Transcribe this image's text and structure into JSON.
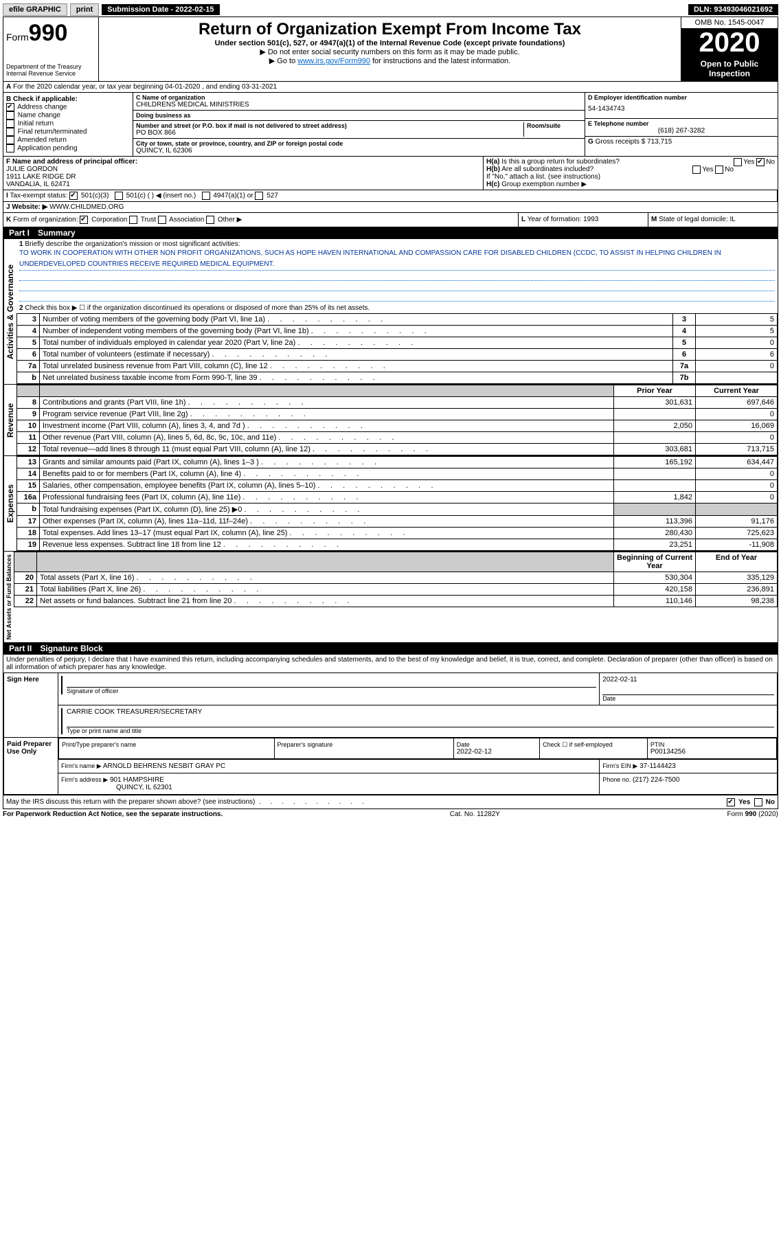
{
  "topbar": {
    "efile": "efile GRAPHIC",
    "print": "print",
    "subdate_label": "Submission Date - 2022-02-15",
    "dln": "DLN: 93493046021692"
  },
  "header": {
    "form_prefix": "Form",
    "form_number": "990",
    "title": "Return of Organization Exempt From Income Tax",
    "subtitle": "Under section 501(c), 527, or 4947(a)(1) of the Internal Revenue Code (except private foundations)",
    "note1": "▶ Do not enter social security numbers on this form as it may be made public.",
    "note2_pre": "▶ Go to ",
    "note2_link": "www.irs.gov/Form990",
    "note2_post": " for instructions and the latest information.",
    "dept": "Department of the Treasury",
    "irs": "Internal Revenue Service",
    "omb": "OMB No. 1545-0047",
    "year": "2020",
    "open": "Open to Public Inspection"
  },
  "lineA": "For the 2020 calendar year, or tax year beginning 04-01-2020   , and ending 03-31-2021",
  "boxB": {
    "label": "B Check if applicable:",
    "items": [
      {
        "label": "Address change",
        "checked": true
      },
      {
        "label": "Name change",
        "checked": false
      },
      {
        "label": "Initial return",
        "checked": false
      },
      {
        "label": "Final return/terminated",
        "checked": false
      },
      {
        "label": "Amended return",
        "checked": false
      },
      {
        "label": "Application pending",
        "checked": false
      }
    ]
  },
  "boxC": {
    "name_label": "C Name of organization",
    "name": "CHILDRENS MEDICAL MINISTRIES",
    "dba_label": "Doing business as",
    "dba": "",
    "street_label": "Number and street (or P.O. box if mail is not delivered to street address)",
    "room_label": "Room/suite",
    "street": "PO BOX 866",
    "city_label": "City or town, state or province, country, and ZIP or foreign postal code",
    "city": "QUINCY, IL  62306"
  },
  "boxD": {
    "label": "D Employer identification number",
    "value": "54-1434743"
  },
  "boxE": {
    "label": "E Telephone number",
    "value": "(618) 267-3282"
  },
  "boxG": {
    "label": "G",
    "text": "Gross receipts $",
    "value": "713,715"
  },
  "boxF": {
    "label": "F Name and address of principal officer:",
    "name": "JULIE GORDON",
    "addr1": "1911 LAKE RIDGE DR",
    "addr2": "VANDALIA, IL  62471"
  },
  "boxH": {
    "a_label": "H(a)",
    "a_text": "Is this a group return for subordinates?",
    "a_yes": "Yes",
    "a_no": "No",
    "b_label": "H(b)",
    "b_text": "Are all subordinates included?",
    "b_note": "If \"No,\" attach a list. (see instructions)",
    "c_label": "H(c)",
    "c_text": "Group exemption number ▶"
  },
  "boxI": {
    "label": "I",
    "text": "Tax-exempt status:",
    "opt1": "501(c)(3)",
    "opt2": "501(c) (   ) ◀ (insert no.)",
    "opt3": "4947(a)(1) or",
    "opt4": "527"
  },
  "boxJ": {
    "label": "J",
    "text": "Website: ▶",
    "value": "WWW.CHILDMED.ORG"
  },
  "boxK": {
    "label": "K",
    "text": "Form of organization:",
    "corp": "Corporation",
    "trust": "Trust",
    "assoc": "Association",
    "other": "Other ▶"
  },
  "boxL": {
    "label": "L",
    "text": "Year of formation:",
    "value": "1993"
  },
  "boxM": {
    "label": "M",
    "text": "State of legal domicile:",
    "value": "IL"
  },
  "part1": {
    "label": "Part I",
    "title": "Summary",
    "line1_label": "1",
    "line1_text": "Briefly describe the organization's mission or most significant activities:",
    "mission": "TO WORK IN COOPERATION WITH OTHER NON PROFIT ORGANIZATIONS, SUCH AS HOPE HAVEN INTERNATIONAL AND COMPASSION CARE FOR DISABLED CHILDREN (CCDC, TO ASSIST IN HELPING CHILDREN IN UNDERDEVELOPED COUNTRIES RECEIVE REQUIRED MEDICAL EQUIPMENT.",
    "line2_text": "Check this box ▶ ☐  if the organization discontinued its operations or disposed of more than 25% of its net assets.",
    "prior_label": "Prior Year",
    "current_label": "Current Year",
    "beg_label": "Beginning of Current Year",
    "end_label": "End of Year",
    "gov_label": "Activities & Governance",
    "rev_label": "Revenue",
    "exp_label": "Expenses",
    "net_label": "Net Assets or Fund Balances",
    "rows_gov": [
      {
        "n": "3",
        "desc": "Number of voting members of the governing body (Part VI, line 1a)",
        "box": "3",
        "val": "5"
      },
      {
        "n": "4",
        "desc": "Number of independent voting members of the governing body (Part VI, line 1b)",
        "box": "4",
        "val": "5"
      },
      {
        "n": "5",
        "desc": "Total number of individuals employed in calendar year 2020 (Part V, line 2a)",
        "box": "5",
        "val": "0"
      },
      {
        "n": "6",
        "desc": "Total number of volunteers (estimate if necessary)",
        "box": "6",
        "val": "6"
      },
      {
        "n": "7a",
        "desc": "Total unrelated business revenue from Part VIII, column (C), line 12",
        "box": "7a",
        "val": "0"
      },
      {
        "n": "b",
        "desc": "Net unrelated business taxable income from Form 990-T, line 39",
        "box": "7b",
        "val": ""
      }
    ],
    "rows_rev": [
      {
        "n": "8",
        "desc": "Contributions and grants (Part VIII, line 1h)",
        "py": "301,631",
        "cy": "697,646"
      },
      {
        "n": "9",
        "desc": "Program service revenue (Part VIII, line 2g)",
        "py": "",
        "cy": "0"
      },
      {
        "n": "10",
        "desc": "Investment income (Part VIII, column (A), lines 3, 4, and 7d )",
        "py": "2,050",
        "cy": "16,069"
      },
      {
        "n": "11",
        "desc": "Other revenue (Part VIII, column (A), lines 5, 6d, 8c, 9c, 10c, and 11e)",
        "py": "",
        "cy": "0"
      },
      {
        "n": "12",
        "desc": "Total revenue—add lines 8 through 11 (must equal Part VIII, column (A), line 12)",
        "py": "303,681",
        "cy": "713,715"
      }
    ],
    "rows_exp": [
      {
        "n": "13",
        "desc": "Grants and similar amounts paid (Part IX, column (A), lines 1–3 )",
        "py": "165,192",
        "cy": "634,447"
      },
      {
        "n": "14",
        "desc": "Benefits paid to or for members (Part IX, column (A), line 4)",
        "py": "",
        "cy": "0"
      },
      {
        "n": "15",
        "desc": "Salaries, other compensation, employee benefits (Part IX, column (A), lines 5–10)",
        "py": "",
        "cy": "0"
      },
      {
        "n": "16a",
        "desc": "Professional fundraising fees (Part IX, column (A), line 11e)",
        "py": "1,842",
        "cy": "0"
      },
      {
        "n": "b",
        "desc": "Total fundraising expenses (Part IX, column (D), line 25) ▶0",
        "py": "GREY",
        "cy": "GREY"
      },
      {
        "n": "17",
        "desc": "Other expenses (Part IX, column (A), lines 11a–11d, 11f–24e)",
        "py": "113,396",
        "cy": "91,176"
      },
      {
        "n": "18",
        "desc": "Total expenses. Add lines 13–17 (must equal Part IX, column (A), line 25)",
        "py": "280,430",
        "cy": "725,623"
      },
      {
        "n": "19",
        "desc": "Revenue less expenses. Subtract line 18 from line 12",
        "py": "23,251",
        "cy": "-11,908"
      }
    ],
    "rows_net": [
      {
        "n": "20",
        "desc": "Total assets (Part X, line 16)",
        "py": "530,304",
        "cy": "335,129"
      },
      {
        "n": "21",
        "desc": "Total liabilities (Part X, line 26)",
        "py": "420,158",
        "cy": "236,891"
      },
      {
        "n": "22",
        "desc": "Net assets or fund balances. Subtract line 21 from line 20",
        "py": "110,146",
        "cy": "98,238"
      }
    ]
  },
  "part2": {
    "label": "Part II",
    "title": "Signature Block",
    "penalty": "Under penalties of perjury, I declare that I have examined this return, including accompanying schedules and statements, and to the best of my knowledge and belief, it is true, correct, and complete. Declaration of preparer (other than officer) is based on all information of which preparer has any knowledge.",
    "sign_here": "Sign Here",
    "sig_officer": "Signature of officer",
    "sig_date": "Date",
    "sig_date_val": "2022-02-11",
    "officer_name": "CARRIE COOK  TREASURER/SECRETARY",
    "type_name": "Type or print name and title",
    "paid": "Paid Preparer Use Only",
    "prep_name_lbl": "Print/Type preparer's name",
    "prep_sig_lbl": "Preparer's signature",
    "prep_date_lbl": "Date",
    "prep_date": "2022-02-12",
    "prep_check": "Check ☐ if self-employed",
    "ptin_lbl": "PTIN",
    "ptin": "P00134256",
    "firm_name_lbl": "Firm's name   ▶",
    "firm_name": "ARNOLD BEHRENS NESBIT GRAY PC",
    "firm_ein_lbl": "Firm's EIN ▶",
    "firm_ein": "37-1144423",
    "firm_addr_lbl": "Firm's address ▶",
    "firm_addr1": "901 HAMPSHIRE",
    "firm_addr2": "QUINCY, IL  62301",
    "phone_lbl": "Phone no.",
    "phone": "(217) 224-7500",
    "discuss": "May the IRS discuss this return with the preparer shown above? (see instructions)",
    "yes": "Yes",
    "no": "No"
  },
  "footer": {
    "left": "For Paperwork Reduction Act Notice, see the separate instructions.",
    "mid": "Cat. No. 11282Y",
    "right": "Form 990 (2020)"
  }
}
